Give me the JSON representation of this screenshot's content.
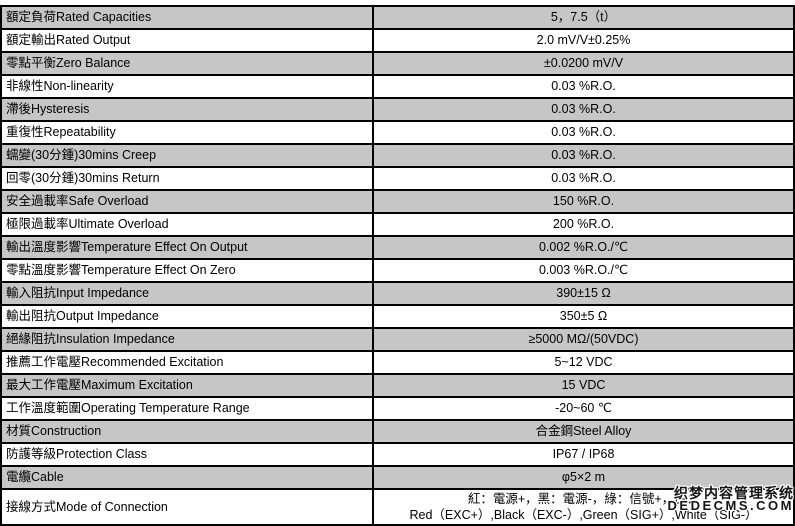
{
  "colors": {
    "row_shade": "#c6c6c6",
    "border": "#000000",
    "background": "#ffffff"
  },
  "table": {
    "rows": [
      {
        "label": "額定負荷Rated Capacities",
        "value": "5，7.5（t）"
      },
      {
        "label": "額定輸出Rated Output",
        "value": "2.0 mV/V±0.25%"
      },
      {
        "label": "零點平衡Zero Balance",
        "value": "±0.0200 mV/V"
      },
      {
        "label": "非線性Non-linearity",
        "value": "0.03 %R.O."
      },
      {
        "label": "滯後Hysteresis",
        "value": "0.03 %R.O."
      },
      {
        "label": "重復性Repeatability",
        "value": "0.03 %R.O."
      },
      {
        "label": "蠕變(30分鍾)30mins Creep",
        "value": "0.03 %R.O."
      },
      {
        "label": "回零(30分鍾)30mins Return",
        "value": "0.03 %R.O."
      },
      {
        "label": "安全過載率Safe Overload",
        "value": "150 %R.O."
      },
      {
        "label": "極限過載率Ultimate Overload",
        "value": "200 %R.O."
      },
      {
        "label": "輸出溫度影響Temperature Effect On Output",
        "value": "0.002 %R.O./℃"
      },
      {
        "label": "零點溫度影響Temperature Effect On Zero",
        "value": "0.003 %R.O./℃"
      },
      {
        "label": "輸入阻抗Input Impedance",
        "value": "390±15 Ω"
      },
      {
        "label": "輸出阻抗Output Impedance",
        "value": "350±5 Ω"
      },
      {
        "label": "絕緣阻抗Insulation Impedance",
        "value": "≥5000 MΩ/(50VDC)"
      },
      {
        "label": "推薦工作電壓Recommended Excitation",
        "value": "5~12 VDC"
      },
      {
        "label": "最大工作電壓Maximum Excitation",
        "value": "15 VDC"
      },
      {
        "label": "工作溫度範圍Operating Temperature Range",
        "value": "-20~60 ℃"
      },
      {
        "label": "材質Construction",
        "value": "合金鋼Steel Alloy"
      },
      {
        "label": "防護等級Protection Class",
        "value": "IP67 / IP68"
      },
      {
        "label": "電纜Cable",
        "value": "φ5×2 m"
      },
      {
        "label": "接線方式Mode of Connection",
        "value_lines": [
          "紅：電源+，黑：電源-，綠：信號+，白：",
          "Red（EXC+）,Black（EXC-）,Green（SIG+）,White（SIG-）"
        ]
      }
    ]
  },
  "watermark": {
    "line1": "织梦内容管理系统",
    "line2": "DEDECMS.COM"
  }
}
